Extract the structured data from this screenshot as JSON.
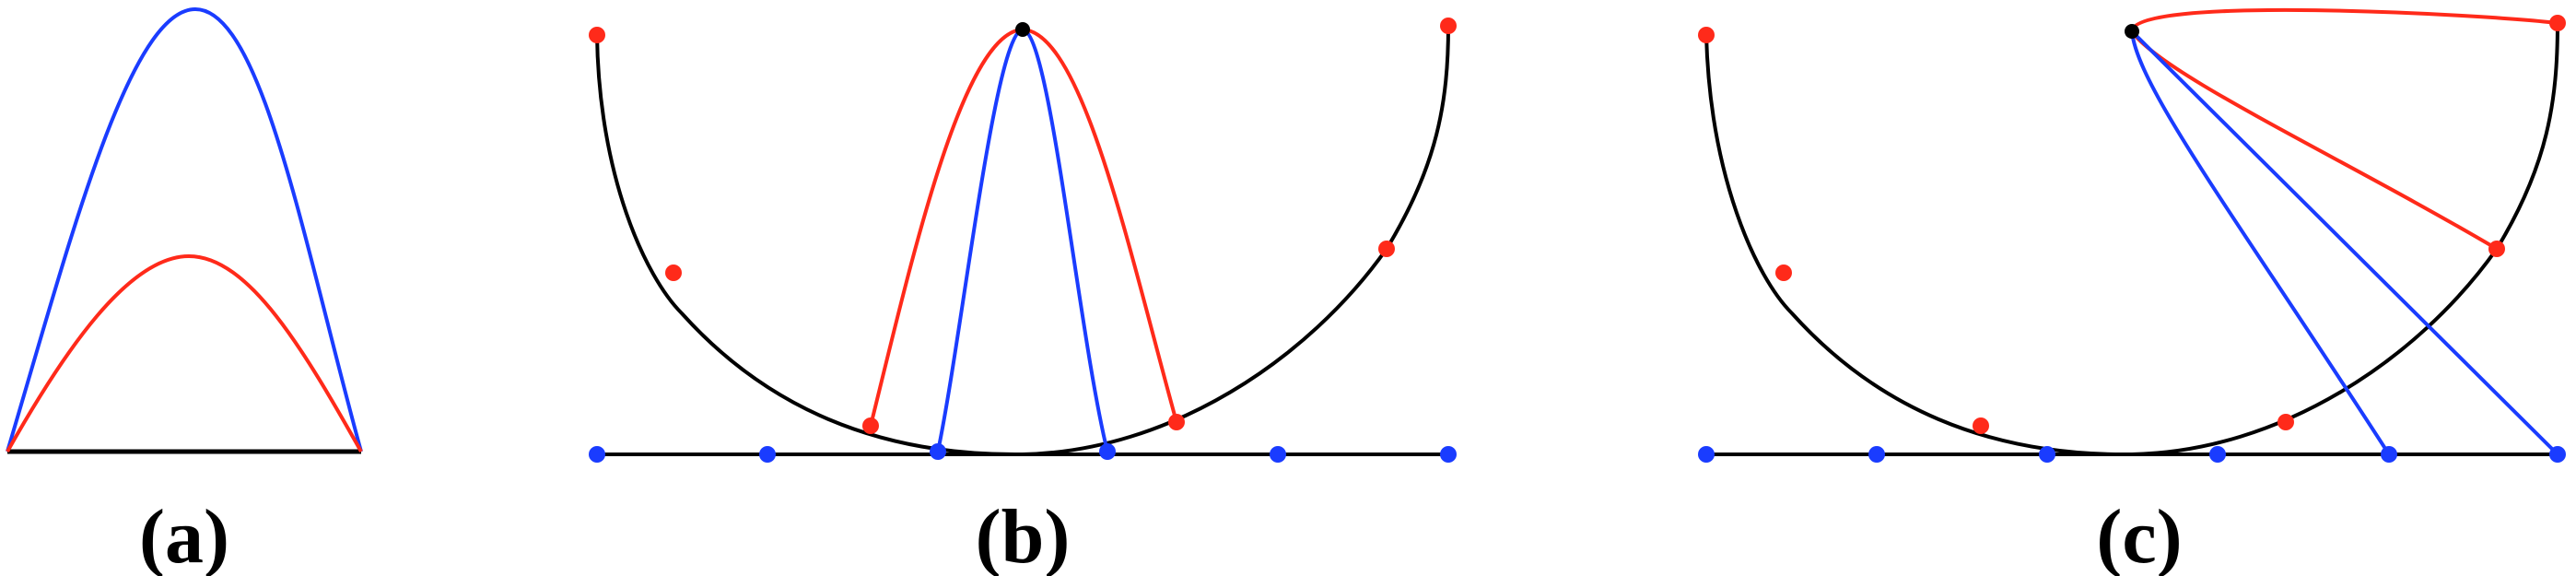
{
  "panels": [
    {
      "caption": "(a)"
    },
    {
      "caption": "(b)"
    },
    {
      "caption": "(c)"
    }
  ],
  "colors": {
    "red": "#ff2a1a",
    "blue": "#1a3cff",
    "black": "#000000"
  }
}
